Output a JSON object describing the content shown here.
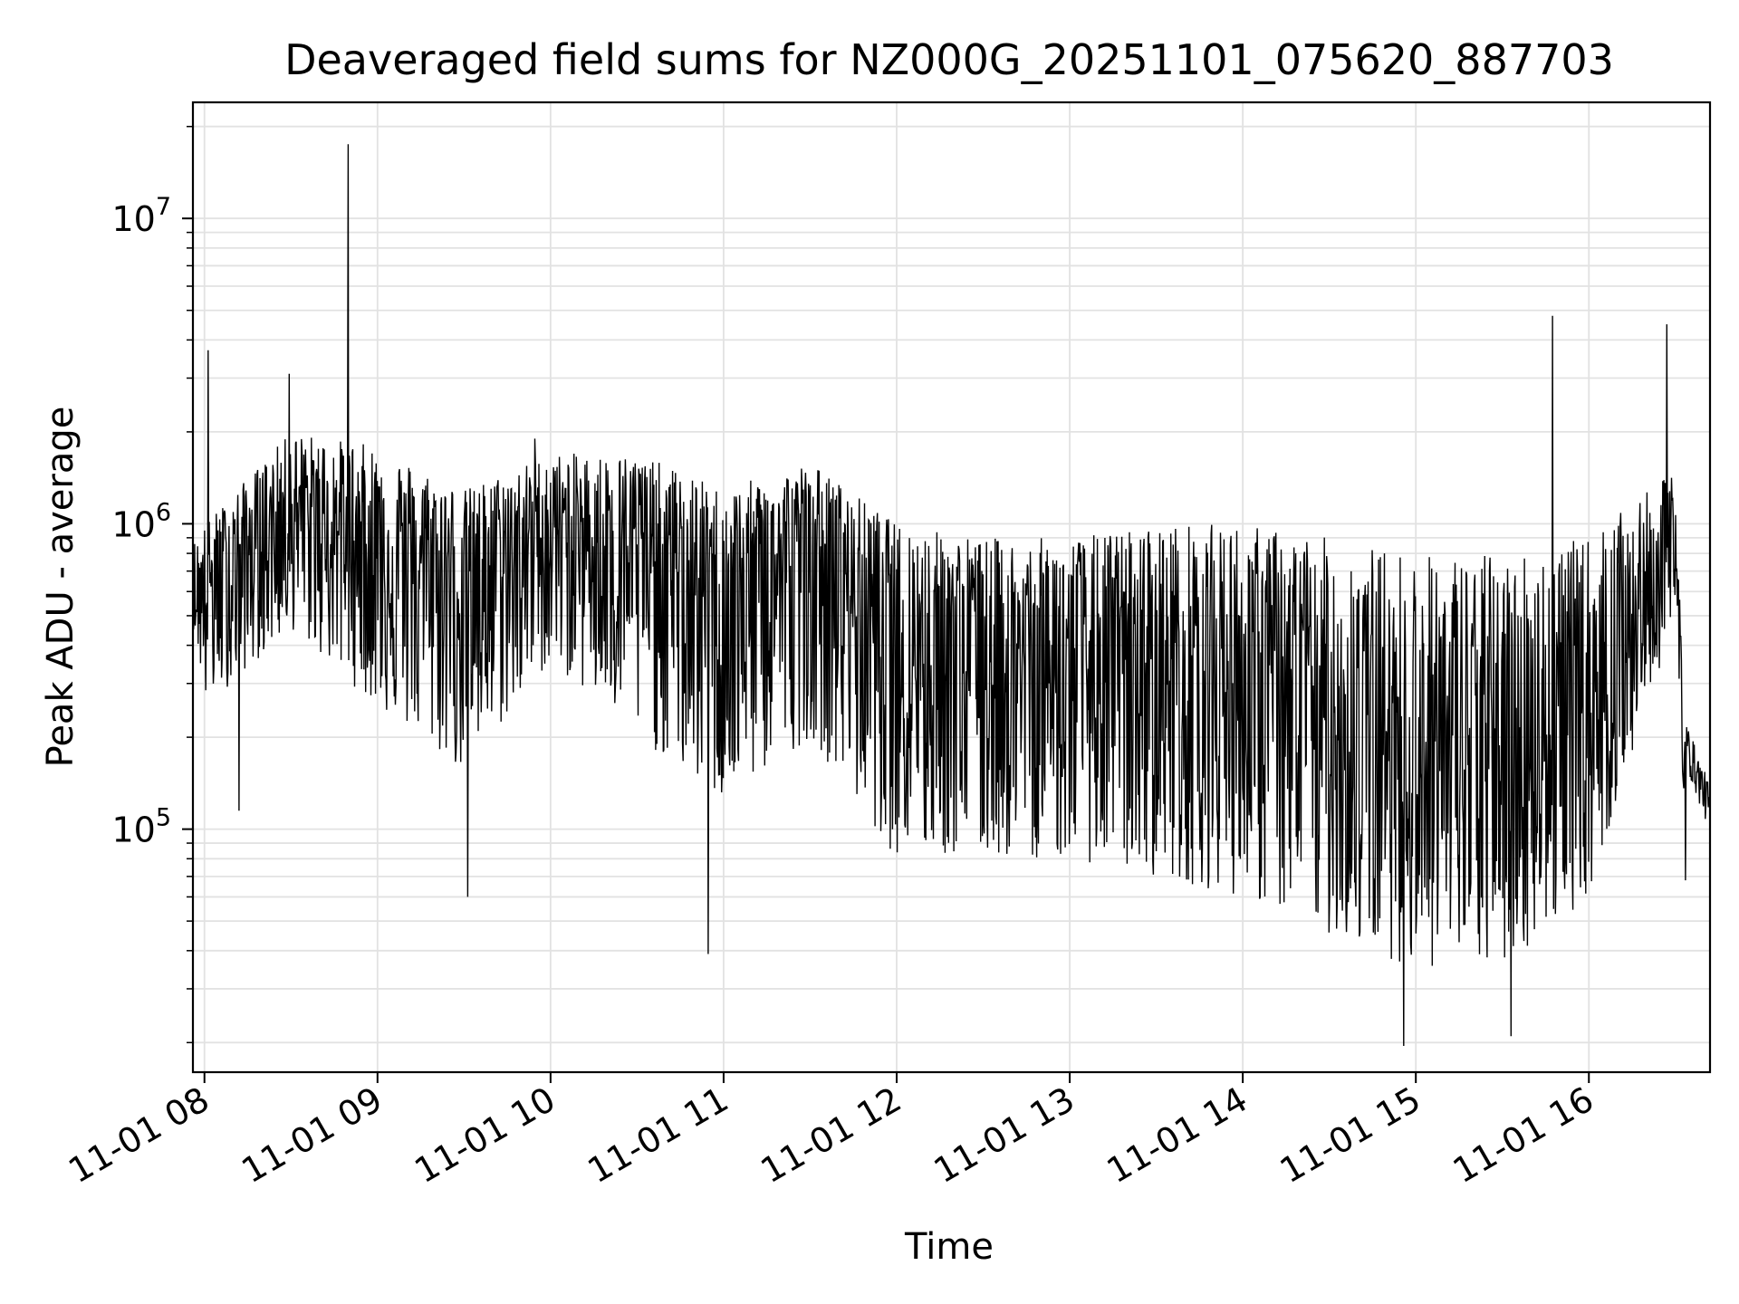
{
  "chart_data": {
    "type": "line",
    "title": "Deaveraged field sums for NZ000G_20251101_075620_887703",
    "xlabel": "Time",
    "ylabel": "Peak ADU - average",
    "yscale": "log",
    "ylim": [
      16000,
      24000000
    ],
    "xlim": [
      "11-01 07:56",
      "11-01 16:42"
    ],
    "x_ticks": [
      "11-01 08",
      "11-01 09",
      "11-01 10",
      "11-01 11",
      "11-01 12",
      "11-01 13",
      "11-01 14",
      "11-01 15",
      "11-01 16"
    ],
    "y_ticks": [
      {
        "base": "10",
        "exp": "5",
        "value": 100000
      },
      {
        "base": "10",
        "exp": "6",
        "value": 1000000
      },
      {
        "base": "10",
        "exp": "7",
        "value": 10000000
      }
    ],
    "grid": true,
    "line_color": "#000000",
    "series": [
      {
        "name": "Peak ADU - average",
        "description": "High-frequency noisy signal; values summarized as envelope (approximate, read from chart)",
        "hours": [
          7.95,
          8.0,
          8.5,
          9.0,
          9.5,
          10.0,
          10.5,
          11.0,
          11.5,
          12.0,
          12.5,
          13.0,
          13.5,
          14.0,
          14.5,
          15.0,
          15.5,
          16.0,
          16.5,
          16.55,
          16.72
        ],
        "median": [
          550000,
          600000,
          1100000,
          850000,
          650000,
          950000,
          850000,
          550000,
          850000,
          450000,
          370000,
          320000,
          330000,
          320000,
          220000,
          170000,
          170000,
          230000,
          850000,
          200000,
          110000
        ],
        "upper": [
          900000,
          1000000,
          2000000,
          1800000,
          1300000,
          1700000,
          1700000,
          1300000,
          1600000,
          1000000,
          900000,
          900000,
          1000000,
          1000000,
          900000,
          800000,
          800000,
          900000,
          1500000,
          260000,
          150000
        ],
        "lower": [
          450000,
          250000,
          450000,
          250000,
          150000,
          350000,
          200000,
          120000,
          200000,
          80000,
          80000,
          80000,
          70000,
          60000,
          45000,
          35000,
          35000,
          60000,
          500000,
          110000,
          95000
        ],
        "spikes": [
          {
            "hour": 8.02,
            "value": 3700000
          },
          {
            "hour": 8.49,
            "value": 3100000
          },
          {
            "hour": 8.83,
            "value": 17500000
          },
          {
            "hour": 9.91,
            "value": 1900000
          },
          {
            "hour": 15.79,
            "value": 4800000
          },
          {
            "hour": 16.45,
            "value": 4500000
          }
        ],
        "dips": [
          {
            "hour": 8.2,
            "value": 115000
          },
          {
            "hour": 9.52,
            "value": 60000
          },
          {
            "hour": 10.91,
            "value": 39000
          },
          {
            "hour": 14.93,
            "value": 19500
          },
          {
            "hour": 15.55,
            "value": 21000
          },
          {
            "hour": 16.56,
            "value": 68000
          }
        ]
      }
    ]
  }
}
